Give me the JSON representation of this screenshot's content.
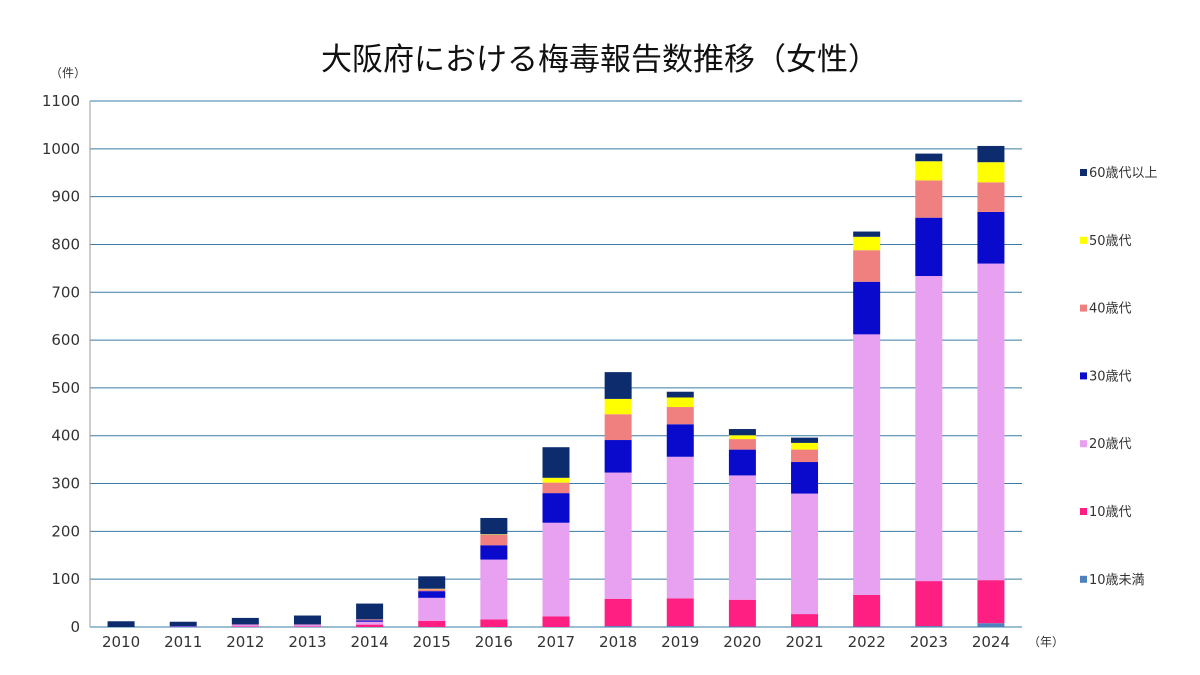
{
  "chart_data": {
    "type": "bar",
    "stacked": true,
    "title": "大阪府における梅毒報告数推移（女性）",
    "y_unit": "（件）",
    "x_unit": "（年）",
    "ylim": [
      0,
      1100
    ],
    "y_ticks": [
      "0",
      "100",
      "200",
      "300",
      "400",
      "500",
      "600",
      "700",
      "800",
      "900",
      "1000",
      "1100"
    ],
    "categories": [
      "2010",
      "2011",
      "2012",
      "2013",
      "2014",
      "2015",
      "2016",
      "2017",
      "2018",
      "2019",
      "2020",
      "2021",
      "2022",
      "2023",
      "2024"
    ],
    "legend_position": "right",
    "series": [
      {
        "name": "10歳未満",
        "color": "#4f81bd",
        "values": [
          0,
          0,
          0,
          0,
          0,
          0,
          0,
          0,
          2,
          2,
          1,
          1,
          1,
          2,
          8
        ]
      },
      {
        "name": "10歳代",
        "color": "#ff1e82",
        "values": [
          0,
          0,
          1,
          1,
          5,
          13,
          16,
          22,
          57,
          58,
          56,
          26,
          66,
          94,
          90
        ]
      },
      {
        "name": "20歳代",
        "color": "#e8a0f0",
        "values": [
          0,
          1,
          3,
          3,
          6,
          48,
          125,
          196,
          264,
          296,
          260,
          252,
          545,
          638,
          662
        ]
      },
      {
        "name": "30歳代",
        "color": "#0a0acc",
        "values": [
          0,
          1,
          1,
          1,
          3,
          14,
          30,
          62,
          68,
          68,
          54,
          66,
          110,
          122,
          108
        ]
      },
      {
        "name": "40歳代",
        "color": "#f08080",
        "values": [
          0,
          0,
          1,
          1,
          2,
          4,
          22,
          22,
          54,
          36,
          22,
          26,
          66,
          78,
          62
        ]
      },
      {
        "name": "50歳代",
        "color": "#ffff00",
        "values": [
          0,
          0,
          0,
          0,
          0,
          1,
          1,
          10,
          32,
          20,
          8,
          14,
          28,
          40,
          42
        ]
      },
      {
        "name": "60歳代以上",
        "color": "#0d2c6e",
        "values": [
          12,
          9,
          13,
          18,
          33,
          26,
          34,
          64,
          56,
          12,
          13,
          11,
          11,
          16,
          34
        ]
      }
    ]
  }
}
